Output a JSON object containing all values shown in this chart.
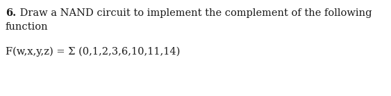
{
  "bold_prefix": "6.",
  "normal_suffix_line1": " Draw a NAND circuit to implement the complement of the following",
  "line2": "function",
  "line3": "F(w,x,y,z) = Σ (0,1,2,3,6,10,11,14)",
  "background_color": "#ffffff",
  "text_color": "#1a1a1a",
  "font_size_main": 10.5,
  "font_size_math": 10.5,
  "figwidth": 5.63,
  "figheight": 1.39,
  "dpi": 100
}
